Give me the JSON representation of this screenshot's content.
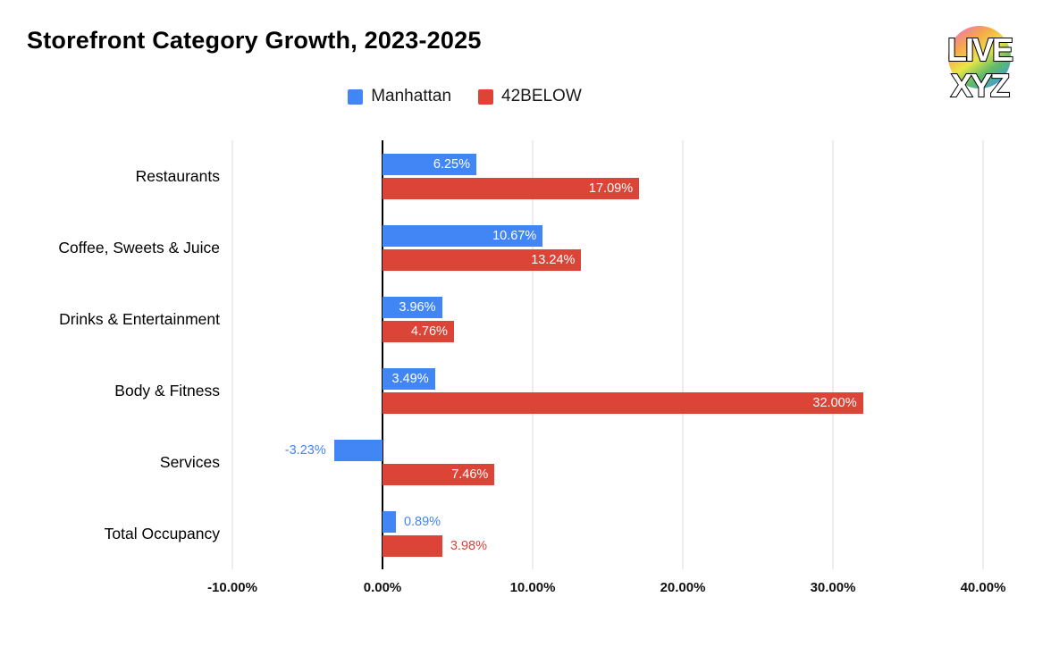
{
  "title": "Storefront Category Growth, 2023-2025",
  "logo": {
    "line1": "LIVE",
    "line2": "XYZ"
  },
  "legend": {
    "items": [
      {
        "label": "Manhattan",
        "color": "#4285F4"
      },
      {
        "label": "42BELOW",
        "color": "#DB4437"
      }
    ]
  },
  "chart_data": {
    "type": "bar",
    "orientation": "horizontal",
    "title": "Storefront Category Growth, 2023-2025",
    "categories": [
      "Restaurants",
      "Coffee, Sweets & Juice",
      "Drinks & Entertainment",
      "Body & Fitness",
      "Services",
      "Total Occupancy"
    ],
    "series": [
      {
        "name": "Manhattan",
        "color": "#4285F4",
        "values": [
          6.25,
          10.67,
          3.96,
          3.49,
          -3.23,
          0.89
        ],
        "labels": [
          "6.25%",
          "10.67%",
          "3.96%",
          "3.49%",
          "-3.23%",
          "0.89%"
        ],
        "label_inside": [
          true,
          true,
          true,
          true,
          false,
          false
        ]
      },
      {
        "name": "42BELOW",
        "color": "#DB4437",
        "values": [
          17.09,
          13.24,
          4.76,
          32.0,
          7.46,
          3.98
        ],
        "labels": [
          "17.09%",
          "13.24%",
          "4.76%",
          "32.00%",
          "7.46%",
          "3.98%"
        ],
        "label_inside": [
          true,
          true,
          true,
          true,
          true,
          false
        ]
      }
    ],
    "xlim": [
      -10,
      40
    ],
    "x_ticks": [
      -10,
      0,
      10,
      20,
      30,
      40
    ],
    "x_tick_labels": [
      "-10.00%",
      "0.00%",
      "10.00%",
      "20.00%",
      "30.00%",
      "40.00%"
    ],
    "grid": true,
    "legend_position": "top"
  }
}
